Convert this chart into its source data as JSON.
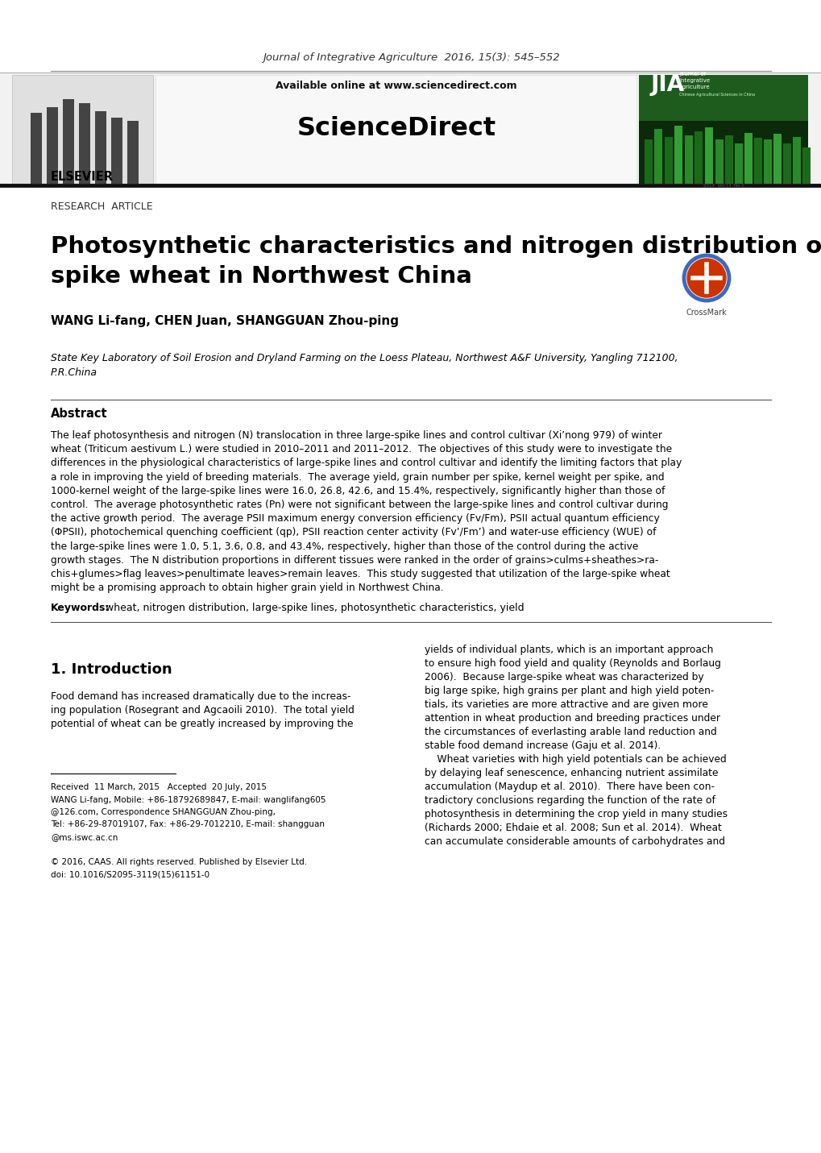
{
  "journal_line": "Journal of Integrative Agriculture  2016, 15(3): 545–552",
  "available_online": "Available online at www.sciencedirect.com",
  "sciencedirect_text": "ScienceDirect",
  "research_article": "RESEARCH  ARTICLE",
  "title_line1": "Photosynthetic characteristics and nitrogen distribution of large-",
  "title_line2": "spike wheat in Northwest China",
  "authors": "WANG Li-fang, CHEN Juan, SHANGGUAN Zhou-ping",
  "affiliation_line1": "State Key Laboratory of Soil Erosion and Dryland Farming on the Loess Plateau, Northwest A&F University, Yangling 712100,",
  "affiliation_line2": "P.R.China",
  "abstract_title": "Abstract",
  "abstract_lines": [
    "The leaf photosynthesis and nitrogen (N) translocation in three large-spike lines and control cultivar (Xi’nong 979) of winter",
    "wheat (Triticum aestivum L.) were studied in 2010–2011 and 2011–2012.  The objectives of this study were to investigate the",
    "differences in the physiological characteristics of large-spike lines and control cultivar and identify the limiting factors that play",
    "a role in improving the yield of breeding materials.  The average yield, grain number per spike, kernel weight per spike, and",
    "1000-kernel weight of the large-spike lines were 16.0, 26.8, 42.6, and 15.4%, respectively, significantly higher than those of",
    "control.  The average photosynthetic rates (Pn) were not significant between the large-spike lines and control cultivar during",
    "the active growth period.  The average PSII maximum energy conversion efficiency (Fv/Fm), PSII actual quantum efficiency",
    "(ΦPSII), photochemical quenching coefficient (qp), PSII reaction center activity (Fv’/Fm’) and water-use efficiency (WUE) of",
    "the large-spike lines were 1.0, 5.1, 3.6, 0.8, and 43.4%, respectively, higher than those of the control during the active",
    "growth stages.  The N distribution proportions in different tissues were ranked in the order of grains>culms+sheathes>ra-",
    "chis+glumes>flag leaves>penultimate leaves>remain leaves.  This study suggested that utilization of the large-spike wheat",
    "might be a promising approach to obtain higher grain yield in Northwest China."
  ],
  "keywords_label": "Keywords:",
  "keywords_text": " wheat, nitrogen distribution, large-spike lines, photosynthetic characteristics, yield",
  "intro_title": "1. Introduction",
  "intro_left_lines": [
    "Food demand has increased dramatically due to the increas-",
    "ing population (Rosegrant and Agcaoili 2010).  The total yield",
    "potential of wheat can be greatly increased by improving the"
  ],
  "intro_right_lines": [
    "yields of individual plants, which is an important approach",
    "to ensure high food yield and quality (Reynolds and Borlaug",
    "2006).  Because large-spike wheat was characterized by",
    "big large spike, high grains per plant and high yield poten-",
    "tials, its varieties are more attractive and are given more",
    "attention in wheat production and breeding practices under",
    "the circumstances of everlasting arable land reduction and",
    "stable food demand increase (Gaju et al. 2014).",
    "    Wheat varieties with high yield potentials can be achieved",
    "by delaying leaf senescence, enhancing nutrient assimilate",
    "accumulation (Maydup et al. 2010).  There have been con-",
    "tradictory conclusions regarding the function of the rate of",
    "photosynthesis in determining the crop yield in many studies",
    "(Richards 2000; Ehdaie et al. 2008; Sun et al. 2014).  Wheat",
    "can accumulate considerable amounts of carbohydrates and"
  ],
  "footnotes": [
    "Received  11 March, 2015   Accepted  20 July, 2015",
    "WANG Li-fang, Mobile: +86-18792689847, E-mail: wanglifang605",
    "@126.com, Correspondence SHANGGUAN Zhou-ping,",
    "Tel: +86-29-87019107, Fax: +86-29-7012210, E-mail: shangguan",
    "@ms.iswc.ac.cn",
    "",
    "© 2016, CAAS. All rights reserved. Published by Elsevier Ltd.",
    "doi: 10.1016/S2095-3119(15)61151-0"
  ],
  "bg_color": "#ffffff"
}
